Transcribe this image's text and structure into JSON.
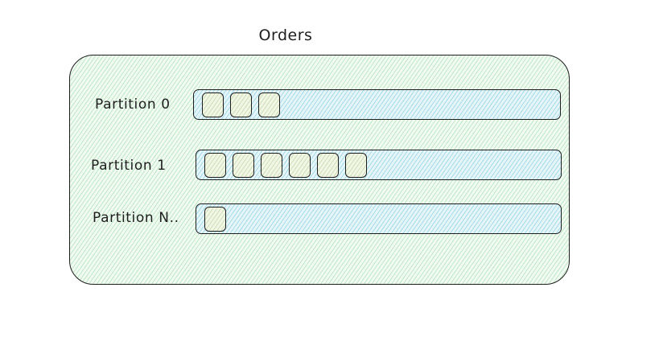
{
  "diagram": {
    "title": "Orders",
    "partitions": [
      {
        "label": "Partition 0",
        "message_count": 3
      },
      {
        "label": "Partition 1",
        "message_count": 6
      },
      {
        "label": "Partition N..",
        "message_count": 1
      }
    ]
  },
  "colors": {
    "topic_fill": "#f1fbf2",
    "partition_fill": "#e6f5f8",
    "message_fill": "#f3f6e6",
    "stroke": "#1e1e1e"
  }
}
